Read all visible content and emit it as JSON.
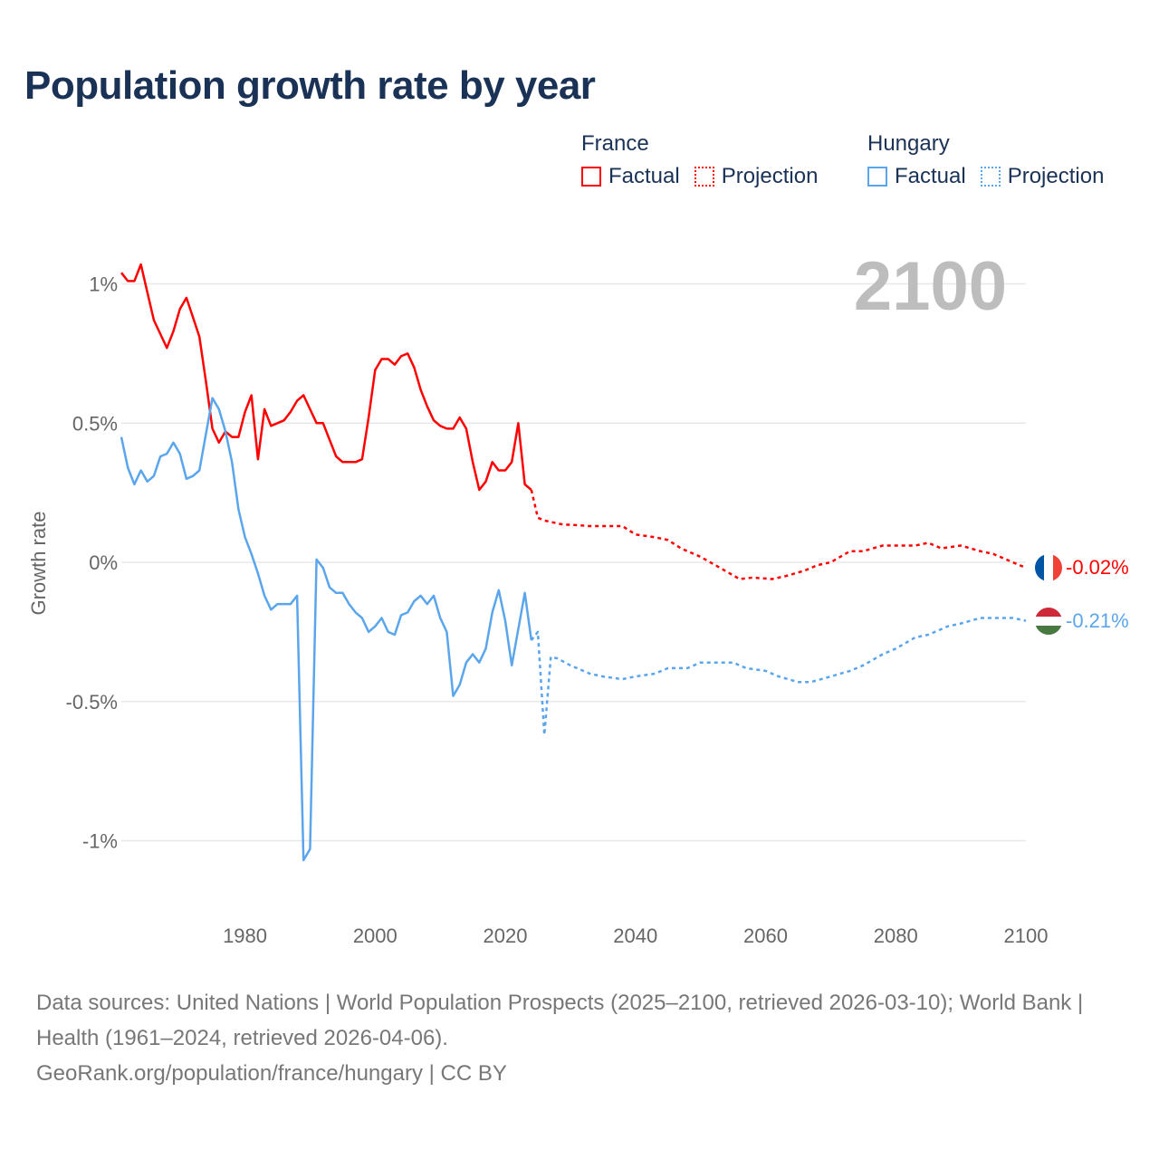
{
  "title": "Population growth rate by year",
  "legend": {
    "groups": [
      {
        "name": "France",
        "factual": "Factual",
        "projection": "Projection"
      },
      {
        "name": "Hungary",
        "factual": "Factual",
        "projection": "Projection"
      }
    ]
  },
  "year_display": "2100",
  "footer": {
    "sources": "Data sources: United Nations | World Population Prospects (2025–2100, retrieved 2026-03-10); World Bank | Health (1961–2024, retrieved 2026-04-06).",
    "link": "GeoRank.org/population/france/hungary | CC BY"
  },
  "chart_data": {
    "type": "line",
    "title": "Population growth rate by year",
    "xlabel": "",
    "ylabel": "Growth rate",
    "xlim": [
      1961,
      2100
    ],
    "ylim": [
      -1.2,
      1.2
    ],
    "xticks": [
      1980,
      2000,
      2020,
      2040,
      2060,
      2080,
      2100
    ],
    "yticks": [
      1,
      0.5,
      0,
      -0.5,
      -1
    ],
    "ytick_labels": [
      "1%",
      "0.5%",
      "0%",
      "-0.5%",
      "-1%"
    ],
    "grid": true,
    "legend_position": "top-right",
    "series": [
      {
        "name": "France",
        "kind": "Factual",
        "color": "#ff0000",
        "dashed": false,
        "x": [
          1961,
          1962,
          1963,
          1964,
          1965,
          1966,
          1967,
          1968,
          1969,
          1970,
          1971,
          1972,
          1973,
          1974,
          1975,
          1976,
          1977,
          1978,
          1979,
          1980,
          1981,
          1982,
          1983,
          1984,
          1985,
          1986,
          1987,
          1988,
          1989,
          1990,
          1991,
          1992,
          1993,
          1994,
          1995,
          1996,
          1997,
          1998,
          1999,
          2000,
          2001,
          2002,
          2003,
          2004,
          2005,
          2006,
          2007,
          2008,
          2009,
          2010,
          2011,
          2012,
          2013,
          2014,
          2015,
          2016,
          2017,
          2018,
          2019,
          2020,
          2021,
          2022,
          2023,
          2024
        ],
        "y": [
          1.04,
          1.01,
          1.01,
          1.07,
          0.97,
          0.87,
          0.82,
          0.77,
          0.83,
          0.91,
          0.95,
          0.88,
          0.81,
          0.65,
          0.48,
          0.43,
          0.47,
          0.45,
          0.45,
          0.54,
          0.6,
          0.37,
          0.55,
          0.49,
          0.5,
          0.51,
          0.54,
          0.58,
          0.6,
          0.55,
          0.5,
          0.5,
          0.44,
          0.38,
          0.36,
          0.36,
          0.36,
          0.37,
          0.52,
          0.69,
          0.73,
          0.73,
          0.71,
          0.74,
          0.75,
          0.7,
          0.62,
          0.56,
          0.51,
          0.49,
          0.48,
          0.48,
          0.52,
          0.48,
          0.36,
          0.26,
          0.29,
          0.36,
          0.33,
          0.33,
          0.36,
          0.5,
          0.28,
          0.26
        ]
      },
      {
        "name": "France",
        "kind": "Projection",
        "color": "#ff0000",
        "dashed": true,
        "x": [
          2024,
          2025,
          2026,
          2027,
          2028,
          2029,
          2030,
          2033,
          2035,
          2038,
          2040,
          2043,
          2045,
          2047,
          2050,
          2053,
          2056,
          2058,
          2061,
          2063,
          2066,
          2068,
          2070,
          2073,
          2075,
          2078,
          2080,
          2083,
          2085,
          2087,
          2090,
          2093,
          2095,
          2098,
          2100
        ],
        "y": [
          0.26,
          0.16,
          0.15,
          0.145,
          0.14,
          0.135,
          0.135,
          0.13,
          0.13,
          0.13,
          0.1,
          0.09,
          0.08,
          0.05,
          0.02,
          -0.02,
          -0.06,
          -0.055,
          -0.06,
          -0.05,
          -0.03,
          -0.01,
          0.0,
          0.04,
          0.04,
          0.06,
          0.06,
          0.06,
          0.07,
          0.05,
          0.06,
          0.04,
          0.03,
          0.0,
          -0.02
        ]
      },
      {
        "name": "Hungary",
        "kind": "Factual",
        "color": "#5aa5ec",
        "dashed": false,
        "x": [
          1961,
          1962,
          1963,
          1964,
          1965,
          1966,
          1967,
          1968,
          1969,
          1970,
          1971,
          1972,
          1973,
          1974,
          1975,
          1976,
          1977,
          1978,
          1979,
          1980,
          1981,
          1982,
          1983,
          1984,
          1985,
          1986,
          1987,
          1988,
          1989,
          1990,
          1991,
          1992,
          1993,
          1994,
          1995,
          1996,
          1997,
          1998,
          1999,
          2000,
          2001,
          2002,
          2003,
          2004,
          2005,
          2006,
          2007,
          2008,
          2009,
          2010,
          2011,
          2012,
          2013,
          2014,
          2015,
          2016,
          2017,
          2018,
          2019,
          2020,
          2021,
          2022,
          2023,
          2024
        ],
        "y": [
          0.45,
          0.34,
          0.28,
          0.33,
          0.29,
          0.31,
          0.38,
          0.39,
          0.43,
          0.39,
          0.3,
          0.31,
          0.33,
          0.46,
          0.59,
          0.55,
          0.47,
          0.36,
          0.19,
          0.09,
          0.03,
          -0.04,
          -0.12,
          -0.17,
          -0.15,
          -0.15,
          -0.15,
          -0.12,
          -1.07,
          -1.03,
          0.01,
          -0.02,
          -0.09,
          -0.11,
          -0.11,
          -0.15,
          -0.18,
          -0.2,
          -0.25,
          -0.23,
          -0.2,
          -0.25,
          -0.26,
          -0.19,
          -0.18,
          -0.14,
          -0.12,
          -0.15,
          -0.12,
          -0.2,
          -0.25,
          -0.48,
          -0.44,
          -0.36,
          -0.33,
          -0.36,
          -0.31,
          -0.18,
          -0.1,
          -0.21,
          -0.37,
          -0.24,
          -0.11,
          -0.28
        ]
      },
      {
        "name": "Hungary",
        "kind": "Projection",
        "color": "#5aa5ec",
        "dashed": true,
        "x": [
          2024,
          2025,
          2026,
          2027,
          2028,
          2030,
          2033,
          2035,
          2038,
          2040,
          2043,
          2045,
          2048,
          2050,
          2052,
          2055,
          2057,
          2060,
          2062,
          2065,
          2067,
          2070,
          2073,
          2075,
          2078,
          2080,
          2083,
          2085,
          2088,
          2090,
          2093,
          2095,
          2098,
          2100
        ],
        "y": [
          -0.28,
          -0.25,
          -0.62,
          -0.34,
          -0.345,
          -0.37,
          -0.4,
          -0.41,
          -0.42,
          -0.41,
          -0.4,
          -0.38,
          -0.38,
          -0.36,
          -0.36,
          -0.36,
          -0.38,
          -0.39,
          -0.41,
          -0.43,
          -0.43,
          -0.41,
          -0.39,
          -0.37,
          -0.33,
          -0.31,
          -0.27,
          -0.26,
          -0.23,
          -0.22,
          -0.2,
          -0.2,
          -0.2,
          -0.21
        ]
      }
    ],
    "end_labels": [
      {
        "country": "France",
        "label": "-0.02%",
        "value": -0.02,
        "color": "#ff0000"
      },
      {
        "country": "Hungary",
        "label": "-0.21%",
        "value": -0.21,
        "color": "#5aa5ec"
      }
    ]
  }
}
